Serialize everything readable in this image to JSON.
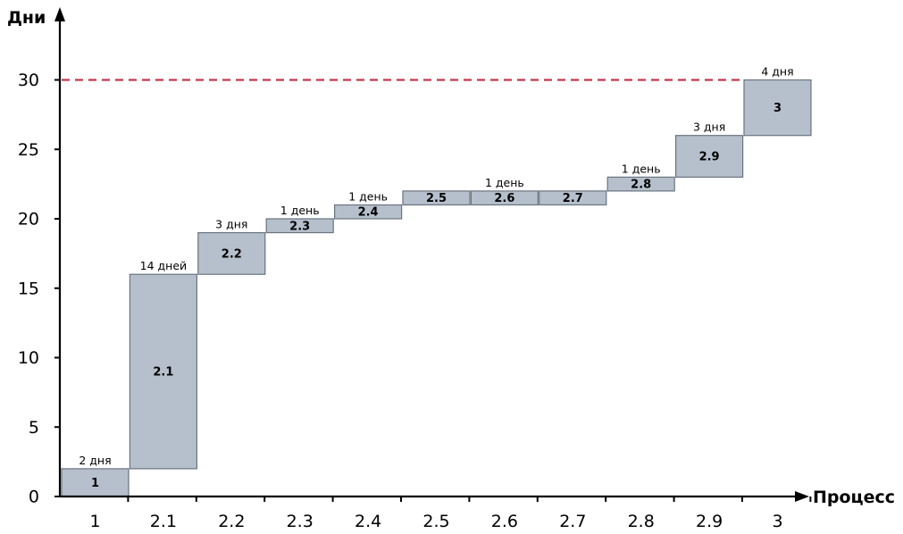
{
  "chart_data": {
    "type": "bar",
    "subtype": "waterfall",
    "title": "",
    "xlabel": "Процесс",
    "ylabel": "Дни",
    "ylim": [
      0,
      30
    ],
    "yticks": [
      0,
      5,
      10,
      15,
      20,
      25,
      30
    ],
    "categories": [
      "1",
      "2.1",
      "2.2",
      "2.3",
      "2.4",
      "2.5",
      "2.6",
      "2.7",
      "2.8",
      "2.9",
      "3"
    ],
    "bars": [
      {
        "label": "1",
        "start": 0,
        "end": 2
      },
      {
        "label": "2.1",
        "start": 2,
        "end": 16
      },
      {
        "label": "2.2",
        "start": 16,
        "end": 19
      },
      {
        "label": "2.3",
        "start": 19,
        "end": 20
      },
      {
        "label": "2.4",
        "start": 20,
        "end": 21
      },
      {
        "label": "2.5",
        "start": 21,
        "end": 22
      },
      {
        "label": "2.6",
        "start": 21,
        "end": 22
      },
      {
        "label": "2.7",
        "start": 21,
        "end": 22
      },
      {
        "label": "2.8",
        "start": 22,
        "end": 23
      },
      {
        "label": "2.9",
        "start": 23,
        "end": 26
      },
      {
        "label": "3",
        "start": 26,
        "end": 30
      }
    ],
    "annotations": [
      {
        "text": "2 дня",
        "category": "1",
        "y": 2
      },
      {
        "text": "14 дней",
        "category": "2.1",
        "y": 16
      },
      {
        "text": "3 дня",
        "category": "2.2",
        "y": 19
      },
      {
        "text": "1 день",
        "category": "2.3",
        "y": 20
      },
      {
        "text": "1 день",
        "category": "2.4",
        "y": 21
      },
      {
        "text": "1 день",
        "category": "2.6",
        "y": 22
      },
      {
        "text": "1 день",
        "category": "2.8",
        "y": 23
      },
      {
        "text": "3 дня",
        "category": "2.9",
        "y": 26
      },
      {
        "text": "4 дня",
        "category": "3",
        "y": 30
      }
    ],
    "reference_line": {
      "y": 30,
      "style": "dashed",
      "color": "#c0394b"
    },
    "bar_color": "#b6c0cc",
    "grid": false,
    "legend": "none"
  }
}
